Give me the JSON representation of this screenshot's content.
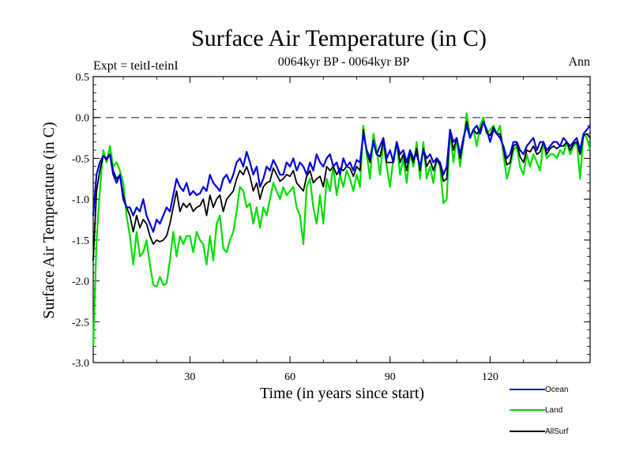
{
  "chart_data": {
    "type": "line",
    "title": "Surface Air Temperature (in C)",
    "subtitle": "0064kyr BP - 0064kyr BP",
    "expt_label": "Expt = teitI-teinI",
    "season_label": "Ann",
    "xlabel": "Time (in years since start)",
    "ylabel": "Surface Air Temperature (in C)",
    "xlim": [
      1,
      150
    ],
    "ylim": [
      -3.0,
      0.5
    ],
    "xticks": [
      30,
      60,
      90,
      120
    ],
    "yticks": [
      0.5,
      0.0,
      -0.5,
      -1.0,
      -1.5,
      -2.0,
      -2.5,
      -3.0
    ],
    "ytick_labels": [
      "0.5",
      "0.0",
      "-0.5",
      "-1.0",
      "-1.5",
      "-2.0",
      "-2.5",
      "-3.0"
    ],
    "reference_line": 0.0,
    "legend_position": "bottom-right, outside plot",
    "series": [
      {
        "name": "Ocean",
        "color": "#0000dd",
        "x": [
          1,
          2,
          3,
          4,
          5,
          6,
          7,
          8,
          9,
          10,
          11,
          12,
          13,
          14,
          15,
          16,
          17,
          18,
          19,
          20,
          21,
          22,
          23,
          24,
          25,
          26,
          27,
          28,
          29,
          30,
          31,
          32,
          33,
          34,
          35,
          36,
          37,
          38,
          39,
          40,
          41,
          42,
          43,
          44,
          45,
          46,
          47,
          48,
          49,
          50,
          51,
          52,
          53,
          54,
          55,
          56,
          57,
          58,
          59,
          60,
          61,
          62,
          63,
          64,
          65,
          66,
          67,
          68,
          69,
          70,
          71,
          72,
          73,
          74,
          75,
          76,
          77,
          78,
          79,
          80,
          81,
          82,
          83,
          84,
          85,
          86,
          87,
          88,
          89,
          90,
          91,
          92,
          93,
          94,
          95,
          96,
          97,
          98,
          99,
          100,
          101,
          102,
          103,
          104,
          105,
          106,
          107,
          108,
          109,
          110,
          111,
          112,
          113,
          114,
          115,
          116,
          117,
          118,
          119,
          120,
          121,
          122,
          123,
          124,
          125,
          126,
          127,
          128,
          129,
          130,
          131,
          132,
          133,
          134,
          135,
          136,
          137,
          138,
          139,
          140,
          141,
          142,
          143,
          144,
          145,
          146,
          147,
          148,
          149,
          150
        ],
        "values": [
          -1.2,
          -0.7,
          -0.55,
          -0.47,
          -0.5,
          -0.45,
          -0.7,
          -0.8,
          -0.7,
          -1.0,
          -1.1,
          -1.1,
          -1.2,
          -1.1,
          -1.15,
          -1.0,
          -1.2,
          -1.3,
          -1.4,
          -1.25,
          -1.3,
          -1.2,
          -1.1,
          -1.15,
          -0.95,
          -0.75,
          -0.85,
          -0.9,
          -0.8,
          -0.95,
          -0.9,
          -0.95,
          -0.93,
          -0.85,
          -0.9,
          -0.7,
          -0.8,
          -0.85,
          -0.9,
          -0.75,
          -0.7,
          -0.8,
          -0.7,
          -0.55,
          -0.5,
          -0.6,
          -0.42,
          -0.55,
          -0.7,
          -0.6,
          -0.85,
          -0.75,
          -0.6,
          -0.65,
          -0.52,
          -0.6,
          -0.7,
          -0.7,
          -0.55,
          -0.6,
          -0.5,
          -0.65,
          -0.55,
          -0.6,
          -0.7,
          -0.55,
          -0.65,
          -0.45,
          -0.55,
          -0.6,
          -0.5,
          -0.45,
          -0.6,
          -0.55,
          -0.7,
          -0.5,
          -0.6,
          -0.55,
          -0.65,
          -0.52,
          -0.55,
          -0.2,
          -0.4,
          -0.5,
          -0.3,
          -0.45,
          -0.35,
          -0.25,
          -0.5,
          -0.4,
          -0.55,
          -0.3,
          -0.45,
          -0.4,
          -0.55,
          -0.4,
          -0.5,
          -0.45,
          -0.6,
          -0.4,
          -0.5,
          -0.45,
          -0.55,
          -0.5,
          -0.55,
          -0.7,
          -0.6,
          -0.15,
          -0.3,
          -0.25,
          -0.45,
          -0.25,
          -0.1,
          -0.25,
          -0.15,
          -0.1,
          -0.2,
          -0.05,
          -0.15,
          -0.3,
          -0.15,
          -0.2,
          -0.25,
          -0.35,
          -0.5,
          -0.45,
          -0.3,
          -0.3,
          -0.4,
          -0.45,
          -0.35,
          -0.3,
          -0.25,
          -0.4,
          -0.3,
          -0.3,
          -0.4,
          -0.35,
          -0.3,
          -0.3,
          -0.35,
          -0.25,
          -0.3,
          -0.35,
          -0.3,
          -0.25,
          -0.4,
          -0.2,
          -0.15,
          -0.1
        ]
      },
      {
        "name": "Land",
        "color": "#00dd00",
        "x": [
          1,
          2,
          3,
          4,
          5,
          6,
          7,
          8,
          9,
          10,
          11,
          12,
          13,
          14,
          15,
          16,
          17,
          18,
          19,
          20,
          21,
          22,
          23,
          24,
          25,
          26,
          27,
          28,
          29,
          30,
          31,
          32,
          33,
          34,
          35,
          36,
          37,
          38,
          39,
          40,
          41,
          42,
          43,
          44,
          45,
          46,
          47,
          48,
          49,
          50,
          51,
          52,
          53,
          54,
          55,
          56,
          57,
          58,
          59,
          60,
          61,
          62,
          63,
          64,
          65,
          66,
          67,
          68,
          69,
          70,
          71,
          72,
          73,
          74,
          75,
          76,
          77,
          78,
          79,
          80,
          81,
          82,
          83,
          84,
          85,
          86,
          87,
          88,
          89,
          90,
          91,
          92,
          93,
          94,
          95,
          96,
          97,
          98,
          99,
          100,
          101,
          102,
          103,
          104,
          105,
          106,
          107,
          108,
          109,
          110,
          111,
          112,
          113,
          114,
          115,
          116,
          117,
          118,
          119,
          120,
          121,
          122,
          123,
          124,
          125,
          126,
          127,
          128,
          129,
          130,
          131,
          132,
          133,
          134,
          135,
          136,
          137,
          138,
          139,
          140,
          141,
          142,
          143,
          144,
          145,
          146,
          147,
          148,
          149,
          150
        ],
        "values": [
          -2.8,
          -1.5,
          -0.9,
          -0.4,
          -0.55,
          -0.35,
          -0.6,
          -0.55,
          -0.65,
          -0.8,
          -1.2,
          -1.45,
          -1.8,
          -1.4,
          -1.7,
          -1.65,
          -1.5,
          -1.8,
          -2.05,
          -2.07,
          -1.95,
          -2.05,
          -2.03,
          -1.75,
          -1.4,
          -1.7,
          -1.45,
          -1.55,
          -1.45,
          -1.45,
          -1.65,
          -1.4,
          -1.5,
          -1.55,
          -1.8,
          -1.45,
          -1.75,
          -1.3,
          -1.2,
          -1.6,
          -1.65,
          -1.5,
          -1.4,
          -1.15,
          -0.85,
          -0.9,
          -1.1,
          -1.05,
          -1.3,
          -1.1,
          -1.35,
          -1.1,
          -1.2,
          -1.0,
          -0.8,
          -0.9,
          -1.0,
          -0.85,
          -0.95,
          -0.9,
          -0.85,
          -1.1,
          -1.2,
          -1.55,
          -0.85,
          -0.75,
          -1.1,
          -1.3,
          -0.95,
          -1.3,
          -0.75,
          -0.9,
          -0.6,
          -0.95,
          -0.7,
          -0.85,
          -0.65,
          -0.75,
          -0.9,
          -0.7,
          -0.85,
          -0.1,
          -0.45,
          -0.75,
          -0.2,
          -0.4,
          -0.7,
          -0.3,
          -0.6,
          -0.85,
          -0.5,
          -0.3,
          -0.7,
          -0.5,
          -0.8,
          -0.45,
          -0.6,
          -0.3,
          -0.75,
          -0.3,
          -0.75,
          -0.6,
          -0.8,
          -0.5,
          -0.6,
          -1.05,
          -1.0,
          -0.15,
          -0.55,
          -0.25,
          -0.6,
          -0.3,
          0.05,
          -0.25,
          -0.15,
          -0.35,
          -0.1,
          0.0,
          -0.2,
          -0.15,
          -0.1,
          -0.2,
          -0.1,
          -0.45,
          -0.75,
          -0.6,
          -0.4,
          -0.35,
          -0.6,
          -0.7,
          -0.45,
          -0.6,
          -0.45,
          -0.55,
          -0.65,
          -0.3,
          -0.5,
          -0.45,
          -0.45,
          -0.5,
          -0.4,
          -0.45,
          -0.3,
          -0.45,
          -0.35,
          -0.3,
          -0.75,
          -0.2,
          -0.25,
          -0.4
        ]
      },
      {
        "name": "AllSurf",
        "color": "#000000",
        "x": [
          1,
          2,
          3,
          4,
          5,
          6,
          7,
          8,
          9,
          10,
          11,
          12,
          13,
          14,
          15,
          16,
          17,
          18,
          19,
          20,
          21,
          22,
          23,
          24,
          25,
          26,
          27,
          28,
          29,
          30,
          31,
          32,
          33,
          34,
          35,
          36,
          37,
          38,
          39,
          40,
          41,
          42,
          43,
          44,
          45,
          46,
          47,
          48,
          49,
          50,
          51,
          52,
          53,
          54,
          55,
          56,
          57,
          58,
          59,
          60,
          61,
          62,
          63,
          64,
          65,
          66,
          67,
          68,
          69,
          70,
          71,
          72,
          73,
          74,
          75,
          76,
          77,
          78,
          79,
          80,
          81,
          82,
          83,
          84,
          85,
          86,
          87,
          88,
          89,
          90,
          91,
          92,
          93,
          94,
          95,
          96,
          97,
          98,
          99,
          100,
          101,
          102,
          103,
          104,
          105,
          106,
          107,
          108,
          109,
          110,
          111,
          112,
          113,
          114,
          115,
          116,
          117,
          118,
          119,
          120,
          121,
          122,
          123,
          124,
          125,
          126,
          127,
          128,
          129,
          130,
          131,
          132,
          133,
          134,
          135,
          136,
          137,
          138,
          139,
          140,
          141,
          142,
          143,
          144,
          145,
          146,
          147,
          148,
          149,
          150
        ],
        "values": [
          -1.75,
          -0.9,
          -0.65,
          -0.47,
          -0.52,
          -0.45,
          -0.65,
          -0.75,
          -0.7,
          -0.95,
          -1.1,
          -1.2,
          -1.4,
          -1.2,
          -1.35,
          -1.25,
          -1.3,
          -1.45,
          -1.55,
          -1.5,
          -1.52,
          -1.5,
          -1.45,
          -1.3,
          -1.1,
          -0.9,
          -1.15,
          -1.05,
          -1.1,
          -1.05,
          -1.15,
          -1.1,
          -1.08,
          -1.0,
          -1.2,
          -0.95,
          -1.1,
          -1.0,
          -0.95,
          -1.15,
          -1.0,
          -0.95,
          -0.9,
          -0.75,
          -0.65,
          -0.7,
          -0.6,
          -0.72,
          -0.9,
          -0.8,
          -1.0,
          -0.85,
          -0.8,
          -0.78,
          -0.62,
          -0.7,
          -0.78,
          -0.75,
          -0.7,
          -0.72,
          -0.65,
          -0.8,
          -0.85,
          -0.9,
          -0.72,
          -0.65,
          -0.8,
          -0.75,
          -0.72,
          -0.85,
          -0.6,
          -0.65,
          -0.6,
          -0.7,
          -0.62,
          -0.65,
          -0.6,
          -0.62,
          -0.72,
          -0.6,
          -0.65,
          -0.15,
          -0.42,
          -0.55,
          -0.28,
          -0.45,
          -0.48,
          -0.28,
          -0.55,
          -0.55,
          -0.55,
          -0.3,
          -0.55,
          -0.45,
          -0.65,
          -0.42,
          -0.55,
          -0.38,
          -0.65,
          -0.38,
          -0.6,
          -0.52,
          -0.65,
          -0.52,
          -0.58,
          -0.78,
          -0.75,
          -0.15,
          -0.4,
          -0.25,
          -0.5,
          -0.28,
          -0.05,
          -0.25,
          -0.15,
          -0.2,
          -0.15,
          -0.05,
          -0.18,
          -0.22,
          -0.12,
          -0.2,
          -0.2,
          -0.38,
          -0.58,
          -0.55,
          -0.35,
          -0.32,
          -0.48,
          -0.55,
          -0.4,
          -0.42,
          -0.35,
          -0.45,
          -0.42,
          -0.3,
          -0.45,
          -0.38,
          -0.35,
          -0.38,
          -0.35,
          -0.35,
          -0.3,
          -0.4,
          -0.32,
          -0.3,
          -0.45,
          -0.22,
          -0.2,
          -0.25
        ]
      }
    ]
  }
}
